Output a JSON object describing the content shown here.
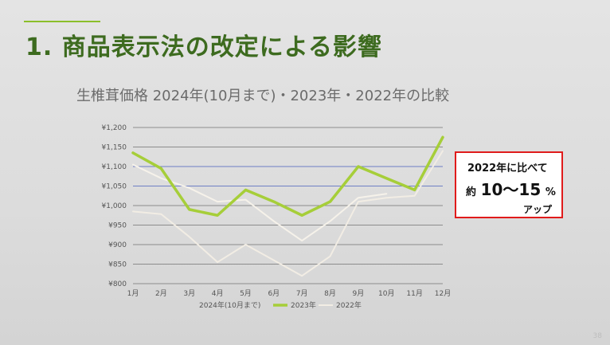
{
  "slide": {
    "title": "1. 商品表示法の改定による影響",
    "subtitle": "生椎茸価格 2024年(10月まで)・2023年・2022年の比較",
    "page_number": "38"
  },
  "callout": {
    "line1": "2022年に比べて",
    "line2_prefix": "約",
    "line2_main": "10～15",
    "line2_suffix": "%",
    "line3": "アップ"
  },
  "colors": {
    "y2024": "#4b5fa8",
    "y2023": "#a6ce39",
    "y2022": "#f2ede4",
    "grid": "#8c8c8c",
    "grid_band": "#6f7fc4"
  },
  "chart_data": {
    "type": "line",
    "categories": [
      "1月",
      "2月",
      "3月",
      "4月",
      "5月",
      "6月",
      "7月",
      "8月",
      "9月",
      "10月",
      "11月",
      "12月"
    ],
    "ylim": [
      800,
      1200
    ],
    "yticks": [
      800,
      850,
      900,
      950,
      1000,
      1050,
      1100,
      1150,
      1200
    ],
    "ytick_labels": [
      "¥800",
      "¥850",
      "¥900",
      "¥950",
      "¥1,000",
      "¥1,050",
      "¥1,100",
      "¥1,150",
      "¥1,200"
    ],
    "grid": true,
    "legend_position": "bottom",
    "series": [
      {
        "name": "2024年(10月まで)",
        "key": "y2024",
        "values": [
          1105,
          1070,
          1045,
          1010,
          1015,
          960,
          910,
          960,
          1020,
          1030,
          null,
          null
        ]
      },
      {
        "name": "2023年",
        "key": "y2023",
        "values": [
          1135,
          1095,
          990,
          975,
          1040,
          1010,
          975,
          1010,
          1100,
          1070,
          1040,
          1175
        ]
      },
      {
        "name": "2022年",
        "key": "y2022",
        "values": [
          985,
          978,
          920,
          855,
          900,
          860,
          820,
          870,
          1010,
          1020,
          1025,
          1140
        ]
      }
    ]
  }
}
